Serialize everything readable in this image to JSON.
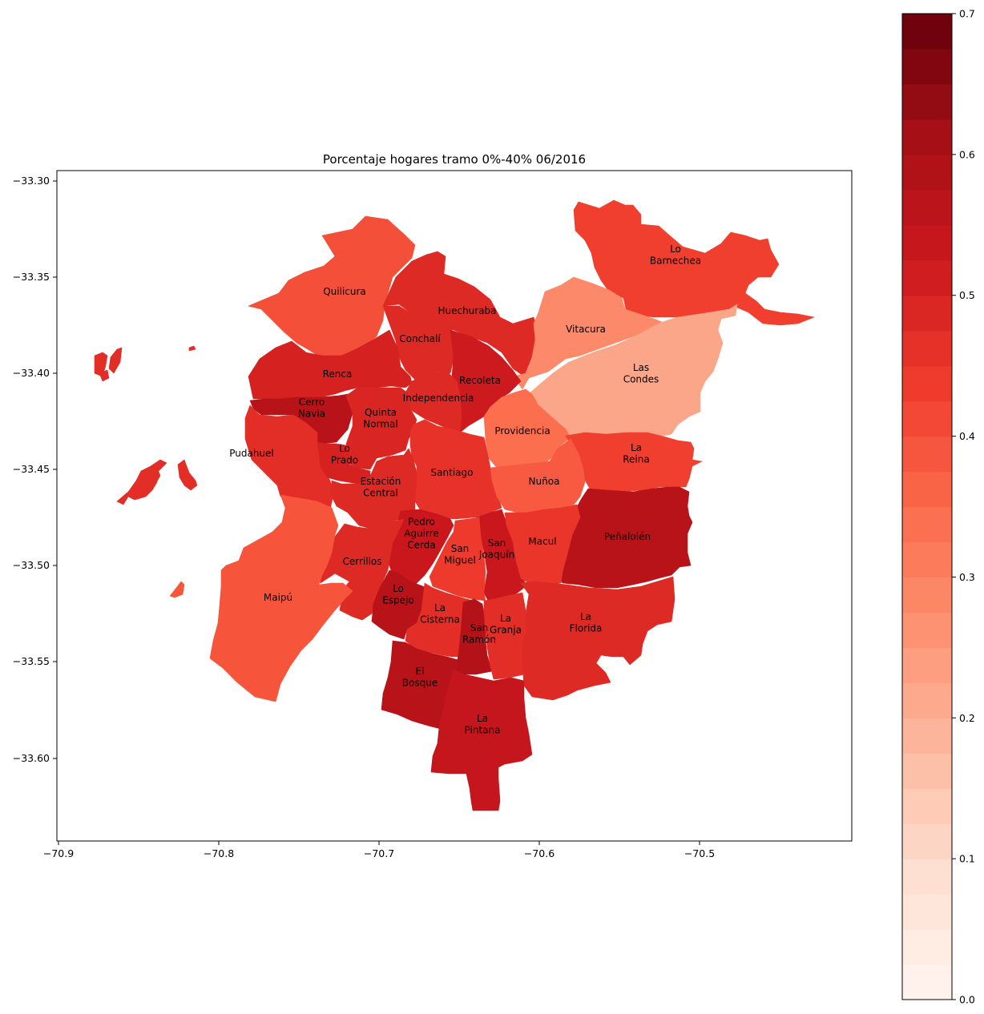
{
  "title": "Porcentaje hogares tramo 0%-40% 06/2016",
  "x_ticks": [
    "−70.9",
    "−70.8",
    "−70.7",
    "−70.6",
    "−70.5"
  ],
  "y_ticks": [
    "−33.30",
    "−33.35",
    "−33.40",
    "−33.45",
    "−33.50",
    "−33.55",
    "−33.60"
  ],
  "colorbar": {
    "ticks": [
      "0.0",
      "0.1",
      "0.2",
      "0.3",
      "0.4",
      "0.5",
      "0.6",
      "0.7"
    ],
    "range": [
      0.0,
      0.7
    ],
    "colormap": "Reds"
  },
  "chart_data": {
    "type": "choropleth",
    "title": "Porcentaje hogares tramo 0%-40% 06/2016",
    "xlim": [
      -70.9,
      -70.4
    ],
    "ylim": [
      -33.64,
      -33.3
    ],
    "colorbar_range": [
      0.0,
      0.7
    ],
    "regions": [
      {
        "name": "Lo\nBarnechea",
        "value": 0.43
      },
      {
        "name": "Quilicura",
        "value": 0.4
      },
      {
        "name": "Huechuraba",
        "value": 0.48
      },
      {
        "name": "Vitacura",
        "value": 0.28
      },
      {
        "name": "Conchalí",
        "value": 0.48
      },
      {
        "name": "Las\nCondes",
        "value": 0.22
      },
      {
        "name": "Renca",
        "value": 0.5
      },
      {
        "name": "Recoleta",
        "value": 0.52
      },
      {
        "name": "Independencia",
        "value": 0.48
      },
      {
        "name": "Cerro\nNavia",
        "value": 0.57
      },
      {
        "name": "Quinta\nNormal",
        "value": 0.49
      },
      {
        "name": "Providencia",
        "value": 0.34
      },
      {
        "name": "Pudahuel",
        "value": 0.47
      },
      {
        "name": "Lo\nPrado",
        "value": 0.5
      },
      {
        "name": "La\nReina",
        "value": 0.43
      },
      {
        "name": "Santiago",
        "value": 0.46
      },
      {
        "name": "Nuñoa",
        "value": 0.38
      },
      {
        "name": "Estación\nCentral",
        "value": 0.48
      },
      {
        "name": "Peñalolén",
        "value": 0.57
      },
      {
        "name": "Pedro\nAguirre\nCerda",
        "value": 0.53
      },
      {
        "name": "San\nJoaquín",
        "value": 0.53
      },
      {
        "name": "Macul",
        "value": 0.45
      },
      {
        "name": "San\nMiguel",
        "value": 0.44
      },
      {
        "name": "Cerrillos",
        "value": 0.48
      },
      {
        "name": "Maipú",
        "value": 0.39
      },
      {
        "name": "Lo\nEspejo",
        "value": 0.57
      },
      {
        "name": "La\nCisterna",
        "value": 0.47
      },
      {
        "name": "La\nFlorida",
        "value": 0.48
      },
      {
        "name": "San\nRamón",
        "value": 0.58
      },
      {
        "name": "La\nGranja",
        "value": 0.47
      },
      {
        "name": "El\nBosque",
        "value": 0.57
      },
      {
        "name": "La\nPintana",
        "value": 0.54
      }
    ]
  }
}
